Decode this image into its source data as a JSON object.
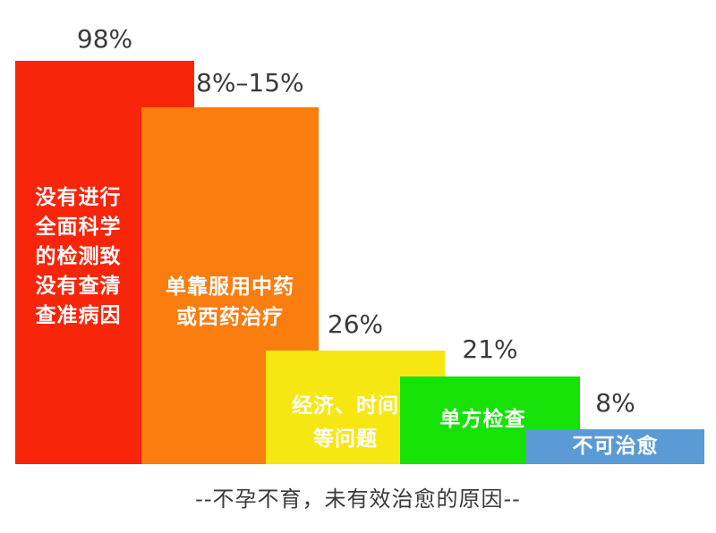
{
  "chart_data": {
    "type": "bar",
    "orientation": "vertical",
    "title": "--不孕不育，未有效治愈的原因--",
    "xlabel": "",
    "ylabel": "",
    "axes_visible": false,
    "gridlines": false,
    "legend_position": "none",
    "background_color": "#ffffff",
    "value_label_color": "#3a3a3a",
    "bar_text_color": "#ffffff",
    "categories": [
      "没有进行全面科学的检测致没有查清查准病因",
      "单靠服用中药或西药治疗",
      "经济、时间等问题",
      "单方检查",
      "不可治愈"
    ],
    "values": [
      "98%",
      "8%–15%",
      "26%",
      "21%",
      "8%"
    ],
    "bars": [
      {
        "label": "没有进行全面科学的检测致没有查清查准病因",
        "label_lines": [
          "没有进行",
          "全面科学",
          "的检测致",
          "没有查清",
          "查准病因"
        ],
        "value": "98%",
        "color": "#f8250b"
      },
      {
        "label": "单靠服用中药或西药治疗",
        "label_lines": [
          "单靠服用中药",
          "或西药治疗"
        ],
        "value": "8%–15%",
        "color": "#fa7d0f"
      },
      {
        "label": "经济、时间等问题",
        "label_lines": [
          "经济、时间",
          "等问题"
        ],
        "value": "26%",
        "color": "#f6e713"
      },
      {
        "label": "单方检查",
        "label_lines": [
          "单方检查"
        ],
        "value": "21%",
        "color": "#17e207"
      },
      {
        "label": "不可治愈",
        "label_lines": [
          "不可治愈"
        ],
        "value": "8%",
        "color": "#5b9bd5"
      }
    ]
  }
}
